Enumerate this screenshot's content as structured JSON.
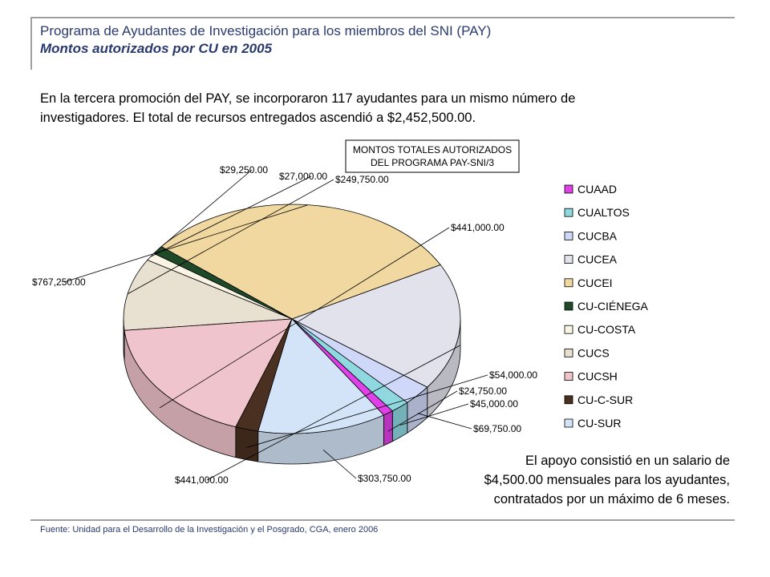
{
  "header": {
    "title": "Programa de Ayudantes de Investigación para los miembros del SNI (PAY)",
    "subtitle": "Montos autorizados por CU en 2005"
  },
  "intro_text": "En la tercera promoción del PAY, se incorporaron 117 ayudantes para un mismo número de investigadores. El total de recursos entregados ascendió a $2,452,500.00.",
  "note_lines": [
    "El apoyo consistió en un salario de",
    "$4,500.00 mensuales para los ayudantes,",
    "contratados por un máximo de 6 meses."
  ],
  "source": "Fuente: Unidad para el Desarrollo de la Investigación y el Posgrado, CGA, enero 2006",
  "chart_data": {
    "type": "pie",
    "title_lines": [
      "MONTOS TOTALES AUTORIZADOS",
      "DEL PROGRAMA PAY-SNI/3"
    ],
    "series": [
      {
        "name": "CUAAD",
        "value": 24750,
        "label": "$24,750.00",
        "color": "#e040e8"
      },
      {
        "name": "CUALTOS",
        "value": 45000,
        "label": "$45,000.00",
        "color": "#8fd8e0"
      },
      {
        "name": "CUCBA",
        "value": 69750,
        "label": "$69,750.00",
        "color": "#cfd8f8"
      },
      {
        "name": "CUCEA",
        "value": 441000,
        "label": "$441,000.00",
        "color": "#e2e2ec"
      },
      {
        "name": "CUCEI",
        "value": 767250,
        "label": "$767,250.00",
        "color": "#f0d8a0"
      },
      {
        "name": "CU-CIÉNEGA",
        "value": 29250,
        "label": "$29,250.00",
        "color": "#1e4a2a"
      },
      {
        "name": "CU-COSTA",
        "value": 27000,
        "label": "$27,000.00",
        "color": "#faf4e4"
      },
      {
        "name": "CUCS",
        "value": 249750,
        "label": "$249,750.00",
        "color": "#e8e0d0"
      },
      {
        "name": "CUCSH",
        "value": 441000,
        "label": "$441,000.00",
        "color": "#f0c4cc"
      },
      {
        "name": "CU-C-SUR",
        "value": 54000,
        "label": "$54,000.00",
        "color": "#4a3020"
      },
      {
        "name": "CU-SUR",
        "value": 303750,
        "label": "$303,750.00",
        "color": "#d4e4f8"
      }
    ]
  }
}
